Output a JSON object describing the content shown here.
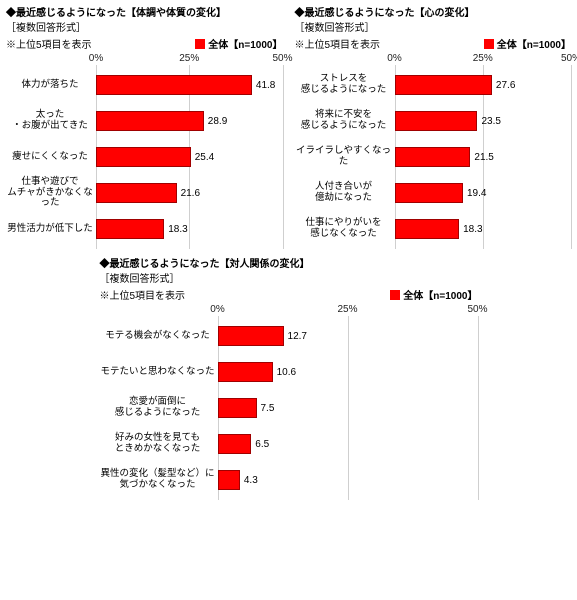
{
  "bar_color": "#ff0000",
  "bar_border": "#a00000",
  "grid_color": "#cfcfcf",
  "charts": [
    {
      "id": "c1",
      "title": "◆最近感じるようになった【体調や体質の変化】",
      "sub": "［複数回答形式］",
      "note": "※上位5項目を表示",
      "legend": "全体【n=1000】",
      "xmax": 50,
      "ticks": [
        0,
        25,
        50
      ],
      "tick_labels": [
        "0%",
        "25%",
        "50%"
      ],
      "label_w": 90,
      "items": [
        {
          "label": "体力が落ちた",
          "value": 41.8
        },
        {
          "label": "太った\n・お腹が出てきた",
          "value": 28.9
        },
        {
          "label": "痩せにくくなった",
          "value": 25.4
        },
        {
          "label": "仕事や遊びで\nムチャがきかなくなった",
          "value": 21.6
        },
        {
          "label": "男性活力が低下した",
          "value": 18.3
        }
      ]
    },
    {
      "id": "c2",
      "title": "◆最近感じるようになった【心の変化】",
      "sub": "［複数回答形式］",
      "note": "※上位5項目を表示",
      "legend": "全体【n=1000】",
      "xmax": 50,
      "ticks": [
        0,
        25,
        50
      ],
      "tick_labels": [
        "0%",
        "25%",
        "50%"
      ],
      "label_w": 100,
      "items": [
        {
          "label": "ストレスを\n感じるようになった",
          "value": 27.6
        },
        {
          "label": "将来に不安を\n感じるようになった",
          "value": 23.5
        },
        {
          "label": "イライラしやすくなった",
          "value": 21.5
        },
        {
          "label": "人付き合いが\n億劫になった",
          "value": 19.4
        },
        {
          "label": "仕事にやりがいを\n感じなくなった",
          "value": 18.3
        }
      ]
    },
    {
      "id": "c3",
      "title": "◆最近感じるようになった【対人関係の変化】",
      "sub": "［複数回答形式］",
      "note": "※上位5項目を表示",
      "legend": "全体【n=1000】",
      "xmax": 50,
      "ticks": [
        0,
        25,
        50
      ],
      "tick_labels": [
        "0%",
        "25%",
        "50%"
      ],
      "label_w": 118,
      "items": [
        {
          "label": "モテる機会がなくなった",
          "value": 12.7
        },
        {
          "label": "モテたいと思わなくなった",
          "value": 10.6
        },
        {
          "label": "恋愛が面倒に\n感じるようになった",
          "value": 7.5
        },
        {
          "label": "好みの女性を見ても\nときめかなくなった",
          "value": 6.5
        },
        {
          "label": "異性の変化（髪型など）に\n気づかなくなった",
          "value": 4.3
        }
      ]
    }
  ]
}
